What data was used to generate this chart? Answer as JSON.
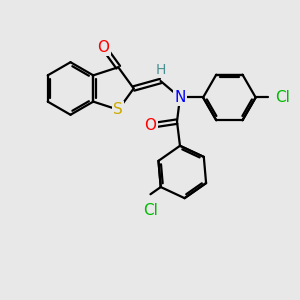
{
  "bg_color": "#e8e8e8",
  "atom_colors": {
    "C": "#000000",
    "H": "#4a9090",
    "N": "#0000ff",
    "O": "#ff0000",
    "S": "#ccaa00",
    "Cl": "#00bb00"
  },
  "bond_color": "#000000",
  "bond_width": 1.6,
  "figsize": [
    3.0,
    3.0
  ],
  "dpi": 100,
  "font_size": 11,
  "font_size_h": 10
}
